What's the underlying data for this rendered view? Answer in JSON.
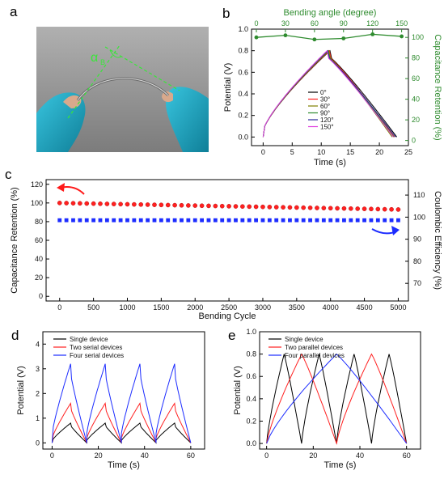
{
  "panels": {
    "a": "a",
    "b": "b",
    "c": "c",
    "d": "d",
    "e": "e"
  },
  "photo": {
    "angle_label": "α",
    "angle_subscript": "B"
  },
  "colors": {
    "green": "#2e8b2e",
    "black": "#000000",
    "red": "#ff2020",
    "blue": "#1c2cff",
    "olive": "#808000",
    "navy": "#2a2a9a",
    "magenta": "#e040e0",
    "bg_photo": "#9a9a9a",
    "glove": "#1fa2c0"
  },
  "chart_data": [
    {
      "id": "b",
      "type": "line",
      "xlabel": "Time (s)",
      "ylabel": "Potential (V)",
      "y2label": "Capacitance Retention (%)",
      "x2label": "Bending angle (degree)",
      "xlim": [
        -2,
        25
      ],
      "ylim": [
        -0.08,
        1.0
      ],
      "y2lim": [
        -5,
        108
      ],
      "x2lim": [
        -5,
        157
      ],
      "xticks": [
        "0",
        "5",
        "10",
        "15",
        "20",
        "25"
      ],
      "yticks": [
        "0.0",
        "0.2",
        "0.4",
        "0.6",
        "0.8",
        "1.0"
      ],
      "y2ticks": [
        "0",
        "20",
        "40",
        "60",
        "80",
        "100"
      ],
      "x2ticks": [
        "0",
        "30",
        "60",
        "90",
        "120",
        "150"
      ],
      "series": [
        {
          "name": "0°",
          "color": "#000000",
          "peak_t": 11.5,
          "end_t": 23.0
        },
        {
          "name": "30°",
          "color": "#ff2020",
          "peak_t": 11.4,
          "end_t": 22.6
        },
        {
          "name": "60°",
          "color": "#808000",
          "peak_t": 11.3,
          "end_t": 22.2
        },
        {
          "name": "90°",
          "color": "#2e8b2e",
          "peak_t": 11.2,
          "end_t": 22.5
        },
        {
          "name": "120°",
          "color": "#2a2a9a",
          "peak_t": 11.1,
          "end_t": 22.8
        },
        {
          "name": "150°",
          "color": "#e040e0",
          "peak_t": 11.0,
          "end_t": 22.4
        }
      ],
      "peak_v": 0.8,
      "retention": {
        "angles": [
          0,
          30,
          60,
          90,
          120,
          150
        ],
        "values": [
          100,
          102,
          98,
          99,
          103,
          101
        ]
      }
    },
    {
      "id": "c",
      "type": "scatter",
      "xlabel": "Bending Cycle",
      "ylabel": "Capacitance Retention (%)",
      "y2label": "Coulombic Efficiency (%)",
      "xlim": [
        -200,
        5150
      ],
      "ylim": [
        -5,
        125
      ],
      "y2lim": [
        62,
        117
      ],
      "xticks": [
        "0",
        "500",
        "1000",
        "1500",
        "2000",
        "2500",
        "3000",
        "3500",
        "4000",
        "4500",
        "5000"
      ],
      "yticks": [
        "0",
        "20",
        "40",
        "60",
        "80",
        "100",
        "120"
      ],
      "y2ticks": [
        "70",
        "80",
        "90",
        "100",
        "110"
      ],
      "retention": {
        "start": 100,
        "end": 93,
        "count": 51,
        "color": "#ff2020"
      },
      "efficiency": {
        "value": 81.5,
        "count": 51,
        "color": "#1c2cff"
      }
    },
    {
      "id": "d",
      "type": "line",
      "xlabel": "Time (s)",
      "ylabel": "Potential (V)",
      "xlim": [
        -4,
        66
      ],
      "ylim": [
        -0.25,
        4.5
      ],
      "xticks": [
        "0",
        "20",
        "40",
        "60"
      ],
      "yticks": [
        "0",
        "1",
        "2",
        "3",
        "4"
      ],
      "series": [
        {
          "name": "Single device",
          "color": "#000000",
          "peak": 0.8
        },
        {
          "name": "Two serial devices",
          "color": "#ff2020",
          "peak": 1.6
        },
        {
          "name": "Four serial devices",
          "color": "#1c2cff",
          "peak": 3.2
        }
      ],
      "cycles": [
        [
          0,
          8,
          15
        ],
        [
          15,
          23,
          30
        ],
        [
          30,
          38,
          45
        ],
        [
          45,
          53,
          60
        ]
      ]
    },
    {
      "id": "e",
      "type": "line",
      "xlabel": "Time (s)",
      "ylabel": "Potential (V)",
      "xlim": [
        -3,
        66
      ],
      "ylim": [
        -0.05,
        1.0
      ],
      "xticks": [
        "0",
        "20",
        "40",
        "60"
      ],
      "yticks": [
        "0.0",
        "0.2",
        "0.4",
        "0.6",
        "0.8",
        "1.0"
      ],
      "series": [
        {
          "name": "Single device",
          "color": "#000000",
          "cycles": [
            [
              0,
              7.5,
              15
            ],
            [
              15,
              22.5,
              30
            ],
            [
              30,
              37.5,
              45
            ],
            [
              45,
              52.5,
              60
            ]
          ]
        },
        {
          "name": "Two parallel devices",
          "color": "#ff2020",
          "cycles": [
            [
              0,
              15,
              30
            ],
            [
              30,
              45,
              60
            ]
          ]
        },
        {
          "name": "Four parallel devices",
          "color": "#1c2cff",
          "cycles": [
            [
              0,
              30,
              60
            ]
          ]
        }
      ],
      "peak": 0.8
    }
  ]
}
